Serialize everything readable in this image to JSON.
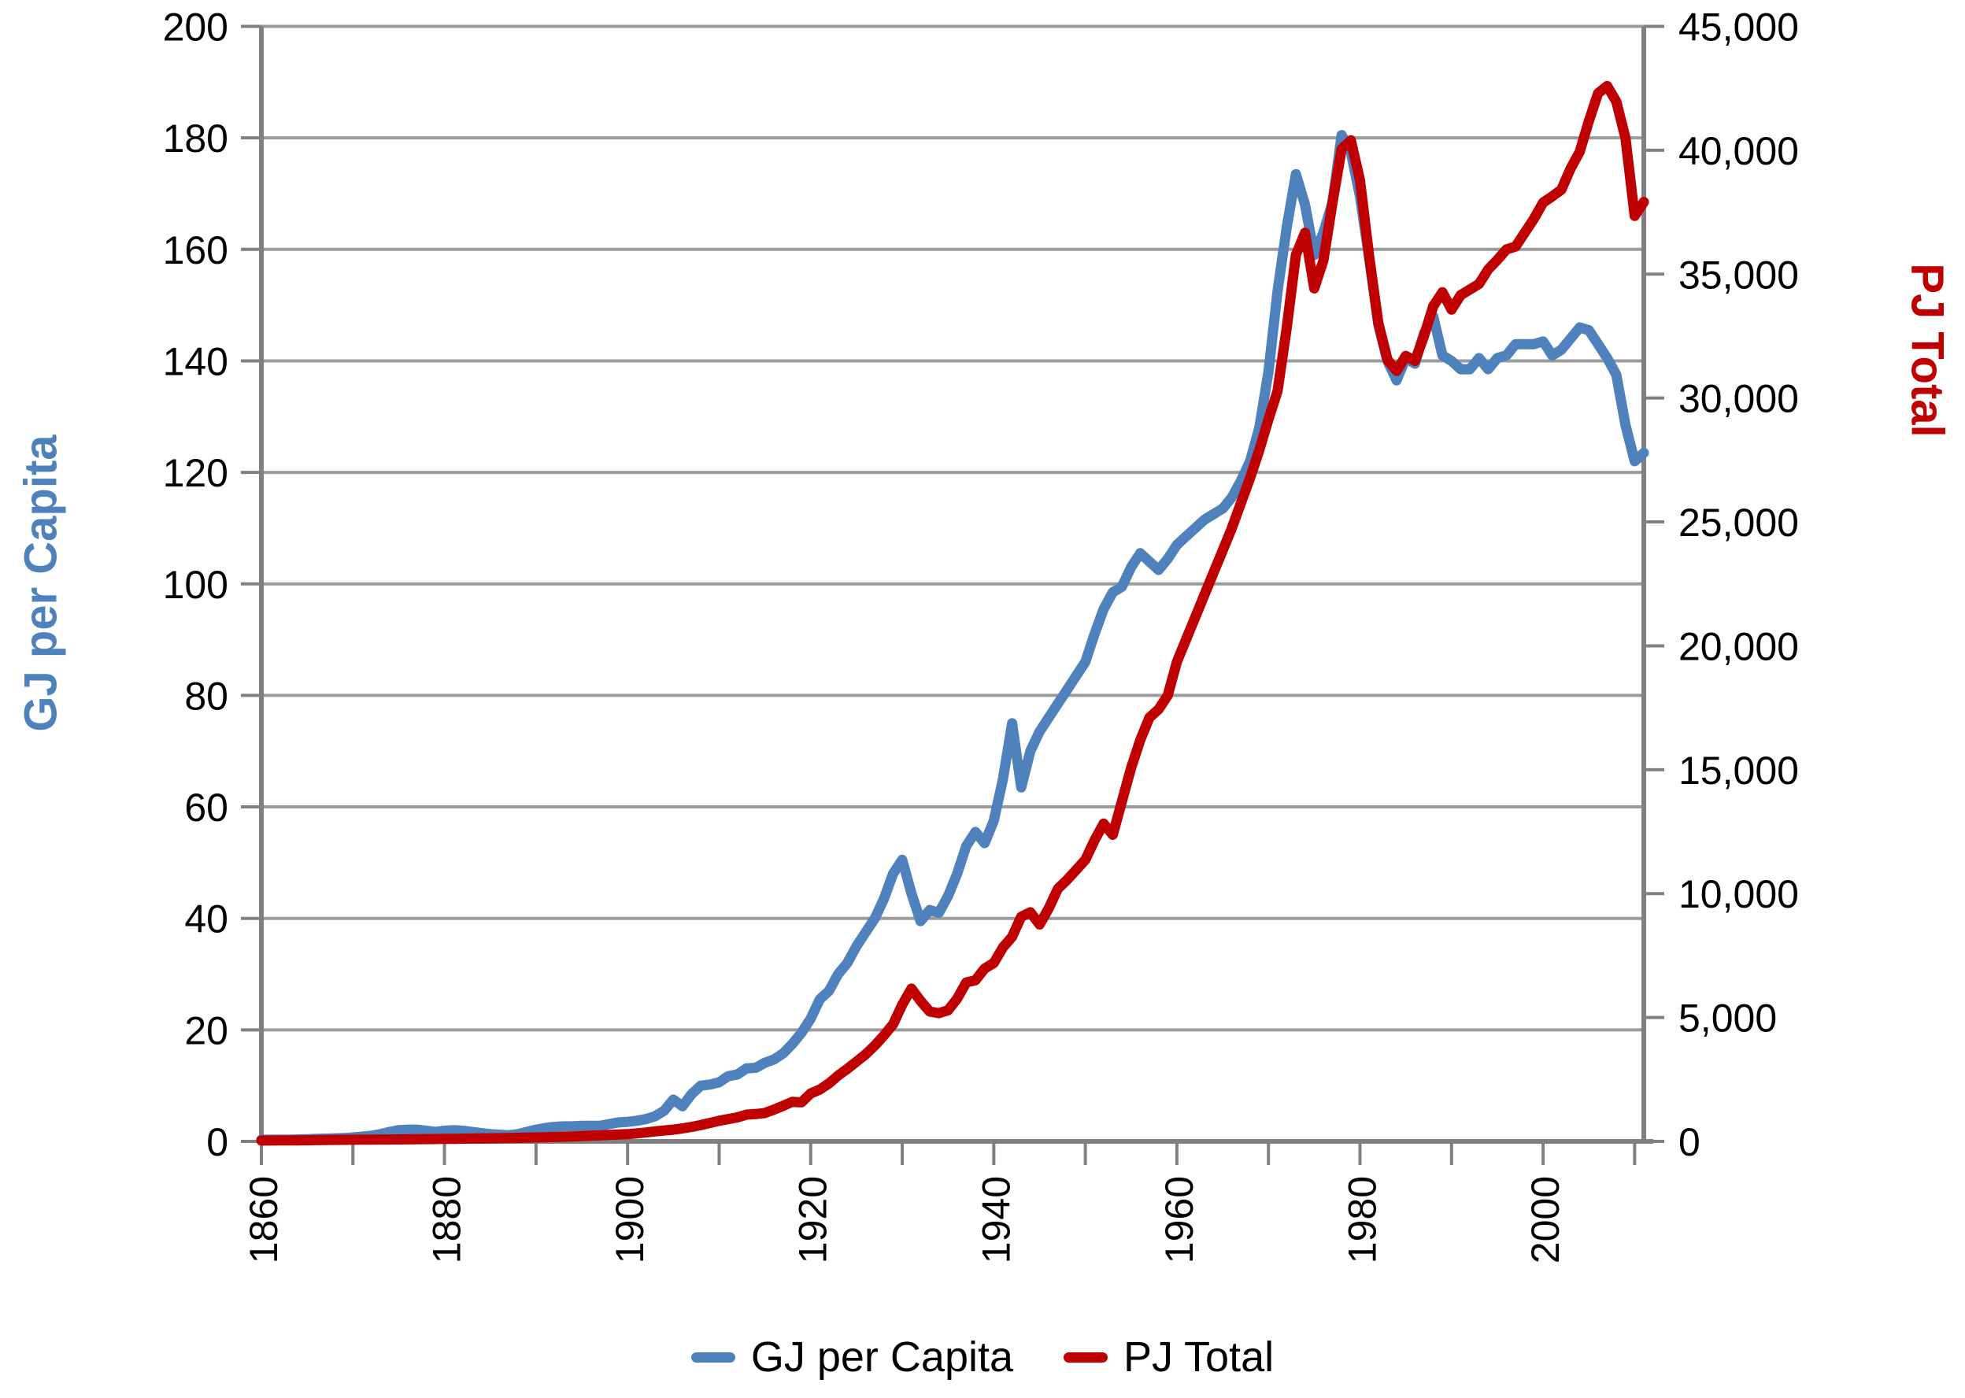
{
  "chart_data": {
    "type": "line",
    "title": "",
    "grid": "horizontal-only",
    "colors": {
      "blue_series": "#4F81BD",
      "red_series": "#C00000",
      "gridline": "#9C9C9C",
      "axis": "#808080"
    },
    "x_axis": {
      "range": [
        1860,
        2011
      ],
      "minor_tick_years": [
        1860,
        1870,
        1880,
        1890,
        1900,
        1910,
        1920,
        1930,
        1940,
        1950,
        1960,
        1970,
        1980,
        1990,
        2000,
        2010
      ],
      "label_years": [
        1860,
        1880,
        1900,
        1920,
        1940,
        1960,
        1980,
        2000
      ],
      "tick_labels": [
        "1860",
        "1880",
        "1900",
        "1920",
        "1940",
        "1960",
        "1980",
        "2000"
      ],
      "label_rotation_deg": -90
    },
    "y_left_axis": {
      "label": "GJ per Capita",
      "range": [
        0,
        200
      ],
      "tick_interval": 20,
      "tick_values": [
        0,
        20,
        40,
        60,
        80,
        100,
        120,
        140,
        160,
        180,
        200
      ],
      "tick_labels": [
        "0",
        "20",
        "40",
        "60",
        "80",
        "100",
        "120",
        "140",
        "160",
        "180",
        "200"
      ]
    },
    "y_right_axis": {
      "label": "PJ Total",
      "range": [
        0,
        45000
      ],
      "tick_interval": 5000,
      "tick_values": [
        0,
        5000,
        10000,
        15000,
        20000,
        25000,
        30000,
        35000,
        40000,
        45000
      ],
      "tick_labels": [
        "0",
        "5,000",
        "10,000",
        "15,000",
        "20,000",
        "25,000",
        "30,000",
        "35,000",
        "40,000",
        "45,000"
      ]
    },
    "legend": {
      "position": "bottom-center",
      "entries": [
        {
          "label": "GJ per Capita",
          "color": "#4F81BD"
        },
        {
          "label": "PJ Total",
          "color": "#C00000"
        }
      ]
    },
    "series": [
      {
        "name": "GJ per Capita",
        "axis": "left",
        "color": "#4F81BD",
        "x_start": 1860,
        "x_step": 1,
        "values": [
          0.3,
          0.3,
          0.3,
          0.3,
          0.35,
          0.4,
          0.45,
          0.5,
          0.55,
          0.6,
          0.7,
          0.85,
          1.0,
          1.3,
          1.7,
          2.0,
          2.1,
          2.1,
          1.9,
          1.7,
          1.9,
          2.0,
          1.9,
          1.7,
          1.5,
          1.3,
          1.2,
          1.1,
          1.3,
          1.7,
          2.1,
          2.4,
          2.6,
          2.7,
          2.7,
          2.8,
          2.8,
          2.8,
          3.1,
          3.4,
          3.5,
          3.7,
          4.0,
          4.5,
          5.5,
          7.5,
          6.3,
          8.5,
          10.0,
          10.2,
          10.6,
          11.7,
          12.0,
          13.1,
          13.2,
          14.1,
          14.7,
          15.8,
          17.5,
          19.5,
          22.0,
          25.5,
          27.0,
          30.0,
          32.0,
          35.0,
          37.5,
          40.0,
          43.5,
          48.0,
          50.5,
          44.5,
          39.5,
          41.5,
          41.0,
          44.0,
          48.0,
          53.0,
          55.5,
          53.5,
          57.5,
          65.0,
          75.0,
          63.5,
          70.0,
          73.5,
          76.0,
          78.5,
          81.0,
          83.5,
          86.0,
          91.0,
          95.5,
          98.5,
          99.5,
          103.0,
          105.5,
          104.0,
          102.5,
          104.5,
          107.0,
          108.5,
          110.0,
          111.5,
          112.5,
          113.5,
          115.5,
          118.5,
          122.0,
          128.0,
          138.0,
          152.5,
          164.0,
          173.5,
          168.0,
          159.0,
          163.0,
          168.5,
          180.5,
          177.5,
          169.5,
          158.5,
          146.5,
          140.0,
          136.5,
          140.5,
          139.5,
          145.0,
          148.0,
          141.0,
          140.0,
          138.5,
          138.5,
          140.5,
          138.5,
          140.5,
          141.0,
          143.0,
          143.0,
          143.0,
          143.5,
          141.0,
          142.0,
          144.0,
          146.0,
          145.5,
          143.0,
          140.5,
          137.5,
          128.5,
          122.0,
          123.5
        ]
      },
      {
        "name": "PJ Total",
        "axis": "right",
        "color": "#C00000",
        "x_start": 1860,
        "x_step": 1,
        "values": [
          35,
          36,
          38,
          40,
          42,
          45,
          50,
          55,
          60,
          64,
          68,
          70,
          73,
          75,
          77,
          79,
          83,
          87,
          91,
          96,
          101,
          105,
          110,
          114,
          119,
          124,
          130,
          136,
          143,
          150,
          158,
          168,
          178,
          189,
          201,
          214,
          228,
          243,
          259,
          276,
          293,
          325,
          360,
          405,
          440,
          473,
          525,
          585,
          660,
          743,
          833,
          900,
          968,
          1080,
          1103,
          1148,
          1283,
          1440,
          1598,
          1575,
          1935,
          2093,
          2340,
          2655,
          2925,
          3218,
          3510,
          3870,
          4275,
          4725,
          5513,
          6165,
          5670,
          5243,
          5175,
          5288,
          5760,
          6413,
          6503,
          6975,
          7200,
          7830,
          8258,
          9068,
          9248,
          8753,
          9405,
          10193,
          10553,
          10958,
          11363,
          12150,
          12825,
          12375,
          13725,
          15075,
          16200,
          17100,
          17438,
          18000,
          19350,
          20250,
          21150,
          22050,
          22950,
          23850,
          24750,
          25763,
          26775,
          27900,
          29138,
          30285,
          32850,
          35775,
          36675,
          34425,
          35550,
          37890,
          40050,
          40400,
          38790,
          35730,
          33030,
          31545,
          31095,
          31703,
          31500,
          32513,
          33705,
          34268,
          33570,
          34155,
          34380,
          34605,
          35190,
          35573,
          36000,
          36113,
          36675,
          37238,
          37890,
          38138,
          38408,
          39263,
          39938,
          41175,
          42300,
          42593,
          41963,
          40500,
          37350,
          37913
        ]
      }
    ]
  }
}
